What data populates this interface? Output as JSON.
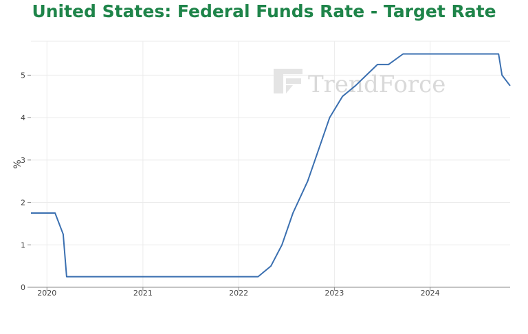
{
  "chart_data": {
    "type": "line",
    "title": "United States: Federal Funds Rate - Target Rate",
    "ylabel": "%",
    "xlabel": "",
    "ylim": [
      0,
      5.8
    ],
    "xlim": [
      "2019-11-01",
      "2024-11-01"
    ],
    "y_ticks": [
      0,
      1,
      2,
      3,
      4,
      5
    ],
    "x_ticks": [
      {
        "date": "2020-01-01",
        "label": "2020"
      },
      {
        "date": "2021-01-01",
        "label": "2021"
      },
      {
        "date": "2022-01-01",
        "label": "2022"
      },
      {
        "date": "2023-01-01",
        "label": "2023"
      },
      {
        "date": "2024-01-01",
        "label": "2024"
      }
    ],
    "grid": true,
    "color": "#3a6fb0",
    "series": [
      {
        "points": [
          [
            "2019-11-01",
            1.75
          ],
          [
            "2020-02-01",
            1.75
          ],
          [
            "2020-03-03",
            1.25
          ],
          [
            "2020-03-16",
            0.25
          ],
          [
            "2022-03-16",
            0.25
          ],
          [
            "2022-05-04",
            0.5
          ],
          [
            "2022-06-15",
            1.0
          ],
          [
            "2022-07-27",
            1.75
          ],
          [
            "2022-09-21",
            2.5
          ],
          [
            "2022-11-02",
            3.25
          ],
          [
            "2022-12-14",
            4.0
          ],
          [
            "2023-02-01",
            4.5
          ],
          [
            "2023-03-22",
            4.75
          ],
          [
            "2023-05-03",
            5.0
          ],
          [
            "2023-06-14",
            5.25
          ],
          [
            "2023-07-26",
            5.25
          ],
          [
            "2023-09-20",
            5.5
          ],
          [
            "2024-09-18",
            5.5
          ],
          [
            "2024-10-01",
            5.0
          ],
          [
            "2024-11-01",
            4.75
          ]
        ]
      }
    ]
  },
  "watermark": {
    "brand": "TrendForce",
    "icon": "trendforce-logo-icon",
    "color": "#d9d9d9"
  }
}
